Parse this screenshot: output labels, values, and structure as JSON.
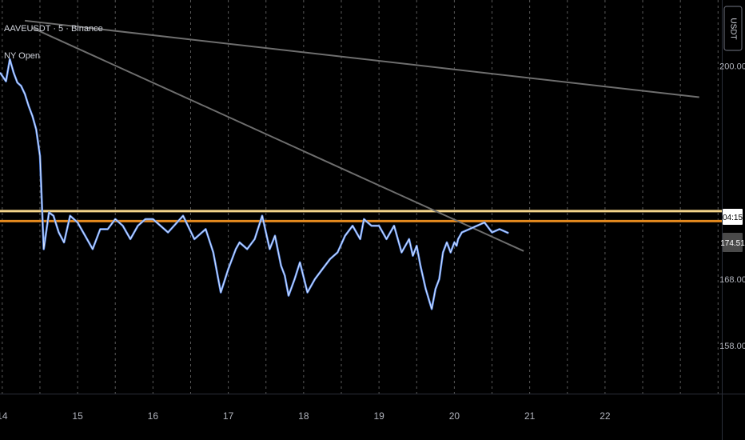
{
  "header": {
    "symbol_line": "AAVEUSDT · 5 · Binance",
    "indicator_label": "NY Open",
    "currency_badge": "USDT"
  },
  "colors": {
    "background": "#000000",
    "price_line": "#5b8def",
    "price_line_highlight": "#ffffff",
    "level_upper": "#f5d58a",
    "level_lower": "#e58a1e",
    "trendline": "#6e6e6e",
    "grid": "#5a5a5a"
  },
  "price_tags": {
    "countdown": "04:15",
    "last_price": "174.51"
  },
  "chart_data": {
    "type": "line",
    "x_axis": {
      "tick_labels": [
        "14",
        "15",
        "16",
        "17",
        "18",
        "19",
        "20",
        "21",
        "22"
      ],
      "domain_days": [
        13.97,
        23.55
      ]
    },
    "y_axis": {
      "tick_labels": [
        "200.00",
        "168.00",
        "158.00"
      ],
      "ylim": [
        150.8,
        209.9
      ],
      "position": "right"
    },
    "grid": true,
    "horizontal_levels": [
      {
        "value": 178.2,
        "color": "#f5d58a"
      },
      {
        "value": 176.7,
        "color": "#e58a1e"
      }
    ],
    "trendlines": [
      {
        "x": [
          14.3,
          23.25
        ],
        "y": [
          206.8,
          195.3
        ]
      },
      {
        "x": [
          14.4,
          20.92
        ],
        "y": [
          205.7,
          172.2
        ]
      }
    ],
    "series": [
      {
        "x": [
          13.97,
          14.05,
          14.1,
          14.15,
          14.2,
          14.25,
          14.3,
          14.35,
          14.4,
          14.45,
          14.5,
          14.55,
          14.62,
          14.68,
          14.75,
          14.82,
          14.9,
          15.0,
          15.1,
          15.2,
          15.3,
          15.4,
          15.5,
          15.6,
          15.7,
          15.8,
          15.9,
          16.0,
          16.2,
          16.4,
          16.55,
          16.7,
          16.8,
          16.9,
          17.0,
          17.1,
          17.15,
          17.25,
          17.35,
          17.45,
          17.55,
          17.62,
          17.7,
          17.75,
          17.8,
          17.88,
          17.95,
          18.05,
          18.15,
          18.25,
          18.35,
          18.45,
          18.55,
          18.65,
          18.75,
          18.8,
          18.85,
          18.9,
          19.0,
          19.1,
          19.2,
          19.3,
          19.4,
          19.45,
          19.5,
          19.55,
          19.62,
          19.7,
          19.75,
          19.8,
          19.85,
          19.9,
          19.95,
          20.0,
          20.03,
          20.05,
          20.1,
          20.2,
          20.3,
          20.4,
          20.5,
          20.6,
          20.72
        ],
        "y": [
          199.0,
          197.7,
          201.0,
          199.0,
          197.5,
          197.0,
          195.8,
          194.0,
          192.5,
          190.5,
          186.5,
          172.5,
          178.0,
          177.5,
          175.0,
          173.5,
          177.5,
          176.5,
          174.5,
          172.5,
          175.5,
          175.5,
          177.0,
          176.0,
          174.0,
          176.0,
          177.0,
          177.0,
          175.0,
          177.5,
          174.0,
          175.5,
          172.0,
          166.0,
          169.5,
          172.5,
          173.5,
          172.5,
          174.0,
          177.5,
          172.5,
          174.5,
          170.0,
          168.5,
          165.5,
          168.0,
          170.5,
          166.0,
          168.0,
          169.5,
          171.0,
          172.0,
          174.5,
          176.0,
          174.0,
          177.0,
          176.5,
          176.0,
          176.0,
          174.0,
          176.0,
          172.0,
          174.0,
          171.5,
          173.0,
          170.0,
          166.5,
          163.5,
          166.5,
          168.0,
          172.0,
          173.5,
          172.0,
          173.5,
          173.0,
          174.0,
          175.0,
          175.5,
          176.0,
          176.5,
          175.0,
          175.5,
          174.9
        ]
      }
    ]
  }
}
